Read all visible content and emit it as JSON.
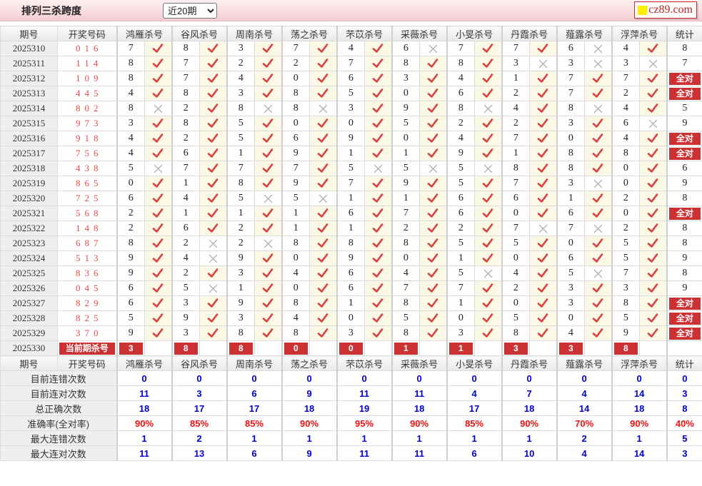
{
  "titlebar": {
    "title": "排列三杀跨度",
    "range_select": "近20期",
    "logo_text": "cz89.com"
  },
  "colors": {
    "badge_red": "#cc3233",
    "check_red": "#d9413f",
    "cross_gray": "#b3b3b3",
    "hit_bg": "#fbf8e6",
    "count_blue": "#0000cc",
    "percent_red": "#ee1111",
    "draw_number_red": "#e2504d"
  },
  "table": {
    "header": {
      "period": "期号",
      "numbers": "开奖号码",
      "stat": "统计",
      "experts": [
        "鸿雁杀号",
        "谷风杀号",
        "周南杀号",
        "荡之杀号",
        "芣苡杀号",
        "采薇杀号",
        "小旻杀号",
        "丹霞杀号",
        "薤露杀号",
        "浮萍杀号"
      ]
    },
    "allhit_label": "全对",
    "rows": [
      {
        "period": "2025310",
        "numbers": "016",
        "kills": [
          [
            7,
            1
          ],
          [
            8,
            1
          ],
          [
            3,
            1
          ],
          [
            7,
            1
          ],
          [
            4,
            1
          ],
          [
            6,
            0
          ],
          [
            7,
            1
          ],
          [
            7,
            1
          ],
          [
            6,
            0
          ],
          [
            4,
            1
          ]
        ],
        "stat": "8"
      },
      {
        "period": "2025311",
        "numbers": "114",
        "kills": [
          [
            8,
            1
          ],
          [
            7,
            1
          ],
          [
            2,
            1
          ],
          [
            2,
            1
          ],
          [
            7,
            1
          ],
          [
            8,
            1
          ],
          [
            8,
            1
          ],
          [
            3,
            0
          ],
          [
            3,
            0
          ],
          [
            3,
            0
          ]
        ],
        "stat": "7"
      },
      {
        "period": "2025312",
        "numbers": "109",
        "kills": [
          [
            8,
            1
          ],
          [
            7,
            1
          ],
          [
            4,
            1
          ],
          [
            0,
            1
          ],
          [
            6,
            1
          ],
          [
            3,
            1
          ],
          [
            4,
            1
          ],
          [
            1,
            1
          ],
          [
            7,
            1
          ],
          [
            7,
            1
          ]
        ],
        "stat": "全对"
      },
      {
        "period": "2025313",
        "numbers": "445",
        "kills": [
          [
            4,
            1
          ],
          [
            8,
            1
          ],
          [
            3,
            1
          ],
          [
            8,
            1
          ],
          [
            5,
            1
          ],
          [
            0,
            1
          ],
          [
            6,
            1
          ],
          [
            2,
            1
          ],
          [
            7,
            1
          ],
          [
            2,
            1
          ]
        ],
        "stat": "全对"
      },
      {
        "period": "2025314",
        "numbers": "802",
        "kills": [
          [
            8,
            0
          ],
          [
            2,
            1
          ],
          [
            8,
            0
          ],
          [
            8,
            0
          ],
          [
            3,
            1
          ],
          [
            9,
            1
          ],
          [
            8,
            0
          ],
          [
            4,
            1
          ],
          [
            8,
            0
          ],
          [
            4,
            1
          ]
        ],
        "stat": "5"
      },
      {
        "period": "2025315",
        "numbers": "973",
        "kills": [
          [
            3,
            1
          ],
          [
            8,
            1
          ],
          [
            5,
            1
          ],
          [
            0,
            1
          ],
          [
            0,
            1
          ],
          [
            5,
            1
          ],
          [
            2,
            1
          ],
          [
            2,
            1
          ],
          [
            3,
            1
          ],
          [
            6,
            0
          ]
        ],
        "stat": "9"
      },
      {
        "period": "2025316",
        "numbers": "918",
        "kills": [
          [
            4,
            1
          ],
          [
            2,
            1
          ],
          [
            5,
            1
          ],
          [
            6,
            1
          ],
          [
            9,
            1
          ],
          [
            0,
            1
          ],
          [
            4,
            1
          ],
          [
            7,
            1
          ],
          [
            0,
            1
          ],
          [
            4,
            1
          ]
        ],
        "stat": "全对"
      },
      {
        "period": "2025317",
        "numbers": "756",
        "kills": [
          [
            4,
            1
          ],
          [
            6,
            1
          ],
          [
            1,
            1
          ],
          [
            9,
            1
          ],
          [
            1,
            1
          ],
          [
            1,
            1
          ],
          [
            9,
            1
          ],
          [
            1,
            1
          ],
          [
            8,
            1
          ],
          [
            8,
            1
          ]
        ],
        "stat": "全对"
      },
      {
        "period": "2025318",
        "numbers": "438",
        "kills": [
          [
            5,
            0
          ],
          [
            7,
            1
          ],
          [
            7,
            1
          ],
          [
            7,
            1
          ],
          [
            5,
            0
          ],
          [
            5,
            0
          ],
          [
            5,
            0
          ],
          [
            8,
            1
          ],
          [
            8,
            1
          ],
          [
            0,
            1
          ]
        ],
        "stat": "6"
      },
      {
        "period": "2025319",
        "numbers": "865",
        "kills": [
          [
            0,
            1
          ],
          [
            1,
            1
          ],
          [
            8,
            1
          ],
          [
            9,
            1
          ],
          [
            7,
            1
          ],
          [
            9,
            1
          ],
          [
            5,
            1
          ],
          [
            7,
            1
          ],
          [
            3,
            0
          ],
          [
            0,
            1
          ]
        ],
        "stat": "9"
      },
      {
        "period": "2025320",
        "numbers": "725",
        "kills": [
          [
            6,
            1
          ],
          [
            4,
            1
          ],
          [
            5,
            0
          ],
          [
            5,
            0
          ],
          [
            1,
            1
          ],
          [
            1,
            1
          ],
          [
            6,
            1
          ],
          [
            6,
            1
          ],
          [
            1,
            1
          ],
          [
            2,
            1
          ]
        ],
        "stat": "8"
      },
      {
        "period": "2025321",
        "numbers": "568",
        "kills": [
          [
            2,
            1
          ],
          [
            1,
            1
          ],
          [
            1,
            1
          ],
          [
            1,
            1
          ],
          [
            6,
            1
          ],
          [
            7,
            1
          ],
          [
            6,
            1
          ],
          [
            0,
            1
          ],
          [
            6,
            1
          ],
          [
            0,
            1
          ]
        ],
        "stat": "全对"
      },
      {
        "period": "2025322",
        "numbers": "148",
        "kills": [
          [
            2,
            1
          ],
          [
            6,
            1
          ],
          [
            2,
            1
          ],
          [
            1,
            1
          ],
          [
            1,
            1
          ],
          [
            2,
            1
          ],
          [
            2,
            1
          ],
          [
            7,
            0
          ],
          [
            7,
            0
          ],
          [
            2,
            1
          ]
        ],
        "stat": "8"
      },
      {
        "period": "2025323",
        "numbers": "687",
        "kills": [
          [
            8,
            1
          ],
          [
            2,
            0
          ],
          [
            2,
            0
          ],
          [
            8,
            1
          ],
          [
            8,
            1
          ],
          [
            8,
            1
          ],
          [
            5,
            1
          ],
          [
            5,
            1
          ],
          [
            0,
            1
          ],
          [
            5,
            1
          ]
        ],
        "stat": "8"
      },
      {
        "period": "2025324",
        "numbers": "513",
        "kills": [
          [
            9,
            1
          ],
          [
            4,
            0
          ],
          [
            9,
            1
          ],
          [
            0,
            1
          ],
          [
            9,
            1
          ],
          [
            0,
            1
          ],
          [
            1,
            1
          ],
          [
            0,
            1
          ],
          [
            6,
            1
          ],
          [
            5,
            1
          ]
        ],
        "stat": "9"
      },
      {
        "period": "2025325",
        "numbers": "836",
        "kills": [
          [
            9,
            1
          ],
          [
            2,
            1
          ],
          [
            3,
            1
          ],
          [
            4,
            1
          ],
          [
            6,
            1
          ],
          [
            4,
            1
          ],
          [
            5,
            0
          ],
          [
            4,
            1
          ],
          [
            5,
            0
          ],
          [
            7,
            1
          ]
        ],
        "stat": "8"
      },
      {
        "period": "2025326",
        "numbers": "045",
        "kills": [
          [
            6,
            1
          ],
          [
            5,
            0
          ],
          [
            1,
            1
          ],
          [
            0,
            1
          ],
          [
            6,
            1
          ],
          [
            7,
            1
          ],
          [
            7,
            1
          ],
          [
            2,
            1
          ],
          [
            3,
            1
          ],
          [
            3,
            1
          ]
        ],
        "stat": "9"
      },
      {
        "period": "2025327",
        "numbers": "829",
        "kills": [
          [
            6,
            1
          ],
          [
            3,
            1
          ],
          [
            9,
            1
          ],
          [
            8,
            1
          ],
          [
            1,
            1
          ],
          [
            8,
            1
          ],
          [
            1,
            1
          ],
          [
            0,
            1
          ],
          [
            3,
            1
          ],
          [
            8,
            1
          ]
        ],
        "stat": "全对"
      },
      {
        "period": "2025328",
        "numbers": "825",
        "kills": [
          [
            5,
            1
          ],
          [
            9,
            1
          ],
          [
            3,
            1
          ],
          [
            4,
            1
          ],
          [
            0,
            1
          ],
          [
            5,
            1
          ],
          [
            0,
            1
          ],
          [
            5,
            1
          ],
          [
            0,
            1
          ],
          [
            5,
            1
          ]
        ],
        "stat": "全对"
      },
      {
        "period": "2025329",
        "numbers": "370",
        "kills": [
          [
            9,
            1
          ],
          [
            3,
            1
          ],
          [
            8,
            1
          ],
          [
            8,
            1
          ],
          [
            3,
            1
          ],
          [
            8,
            1
          ],
          [
            3,
            1
          ],
          [
            8,
            1
          ],
          [
            4,
            1
          ],
          [
            9,
            1
          ]
        ],
        "stat": "全对"
      }
    ],
    "current": {
      "period": "2025330",
      "label": "当前期杀号",
      "kills": [
        "3",
        "8",
        "8",
        "0",
        "0",
        "1",
        "1",
        "3",
        "3",
        "8"
      ]
    },
    "summary": [
      {
        "label": "目前连错次数",
        "values": [
          "0",
          "0",
          "0",
          "0",
          "0",
          "0",
          "0",
          "0",
          "0",
          "0"
        ],
        "total": "0",
        "style": "blue"
      },
      {
        "label": "目前连对次数",
        "values": [
          "11",
          "3",
          "6",
          "9",
          "11",
          "11",
          "4",
          "7",
          "4",
          "14"
        ],
        "total": "3",
        "style": "blue"
      },
      {
        "label": "总正确次数",
        "values": [
          "18",
          "17",
          "17",
          "18",
          "19",
          "18",
          "17",
          "18",
          "14",
          "18"
        ],
        "total": "8",
        "style": "blue"
      },
      {
        "label": "准确率(全对率)",
        "values": [
          "90%",
          "85%",
          "85%",
          "90%",
          "95%",
          "90%",
          "85%",
          "90%",
          "70%",
          "90%"
        ],
        "total": "40%",
        "style": "red"
      },
      {
        "label": "最大连错次数",
        "values": [
          "1",
          "2",
          "1",
          "1",
          "1",
          "1",
          "1",
          "1",
          "2",
          "1"
        ],
        "total": "5",
        "style": "blue"
      },
      {
        "label": "最大连对次数",
        "values": [
          "11",
          "13",
          "6",
          "9",
          "11",
          "11",
          "6",
          "10",
          "4",
          "14"
        ],
        "total": "3",
        "style": "blue"
      }
    ]
  }
}
